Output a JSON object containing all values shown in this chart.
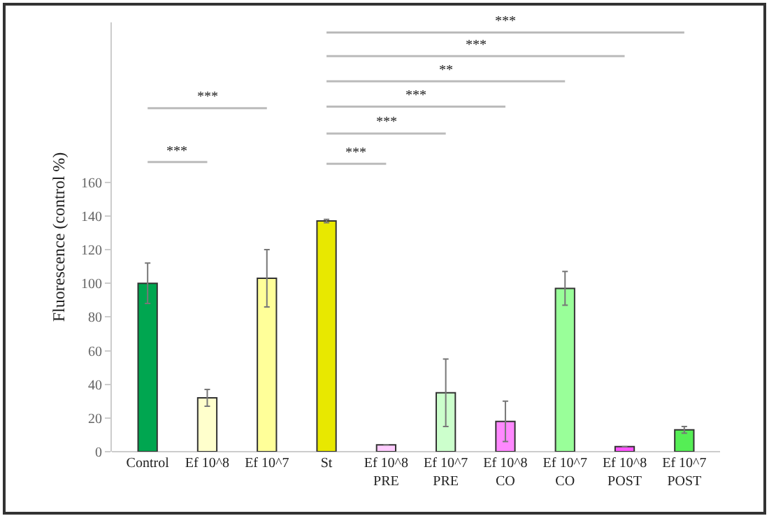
{
  "chart_data": {
    "type": "bar",
    "ylabel": "Fluorescence (control %)",
    "categories": [
      "Control",
      "Ef 10^8",
      "Ef 10^7",
      "St",
      "Ef 10^8\nPRE",
      "Ef 10^7\nPRE",
      "Ef 10^8\nCO",
      "Ef 10^7\nCO",
      "Ef 10^8\nPOST",
      "Ef 10^7\nPOST"
    ],
    "values": [
      100,
      32,
      103,
      137,
      4,
      35,
      18,
      97,
      3,
      13
    ],
    "errors": [
      12,
      5,
      17,
      1,
      null,
      20,
      12,
      10,
      null,
      2
    ],
    "colors": [
      "#00a650",
      "#ffffcc",
      "#ffff99",
      "#e8e800",
      "#ffccff",
      "#ccffcc",
      "#ff88ff",
      "#99ff99",
      "#ff55ff",
      "#55ee55"
    ],
    "ylim": [
      0,
      255
    ],
    "yticks": [
      0,
      20,
      40,
      60,
      80,
      100,
      120,
      140,
      160
    ],
    "grid": false,
    "annotations": [
      "***",
      "***",
      "***",
      "***",
      "***",
      "**",
      "***",
      "***"
    ]
  }
}
